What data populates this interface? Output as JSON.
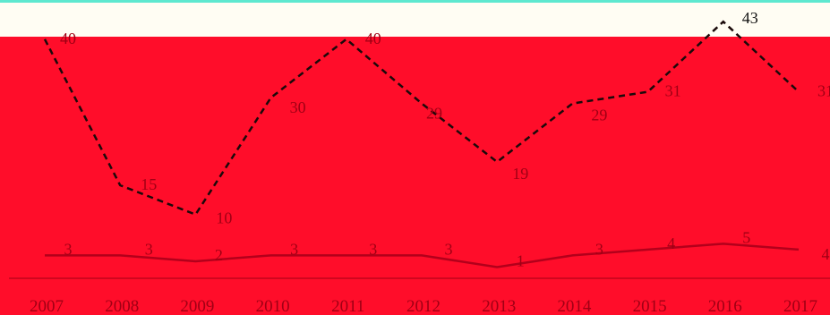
{
  "chart_data": {
    "type": "line",
    "categories": [
      "2007",
      "2008",
      "2009",
      "2010",
      "2011",
      "2012",
      "2013",
      "2014",
      "2015",
      "2016",
      "2017"
    ],
    "series": [
      {
        "values": [
          40,
          15,
          10,
          30,
          40,
          29,
          19,
          29,
          31,
          43,
          31
        ],
        "style": "dashed",
        "color": "#1a0a0a"
      },
      {
        "values": [
          3,
          3,
          2,
          3,
          3,
          3,
          1,
          3,
          4,
          5,
          4
        ],
        "style": "solid",
        "color": "#b3001b"
      }
    ],
    "title": "",
    "xlabel": "",
    "ylabel": "",
    "grid": false,
    "legend": "none"
  },
  "colors": {
    "plot_background": "#ff0d2a",
    "top_band": "#fffdf3",
    "top_border": "#5ee8cf",
    "axis_label": "#a00014",
    "data_label": "#a00014",
    "data_label_above": "#111111"
  }
}
